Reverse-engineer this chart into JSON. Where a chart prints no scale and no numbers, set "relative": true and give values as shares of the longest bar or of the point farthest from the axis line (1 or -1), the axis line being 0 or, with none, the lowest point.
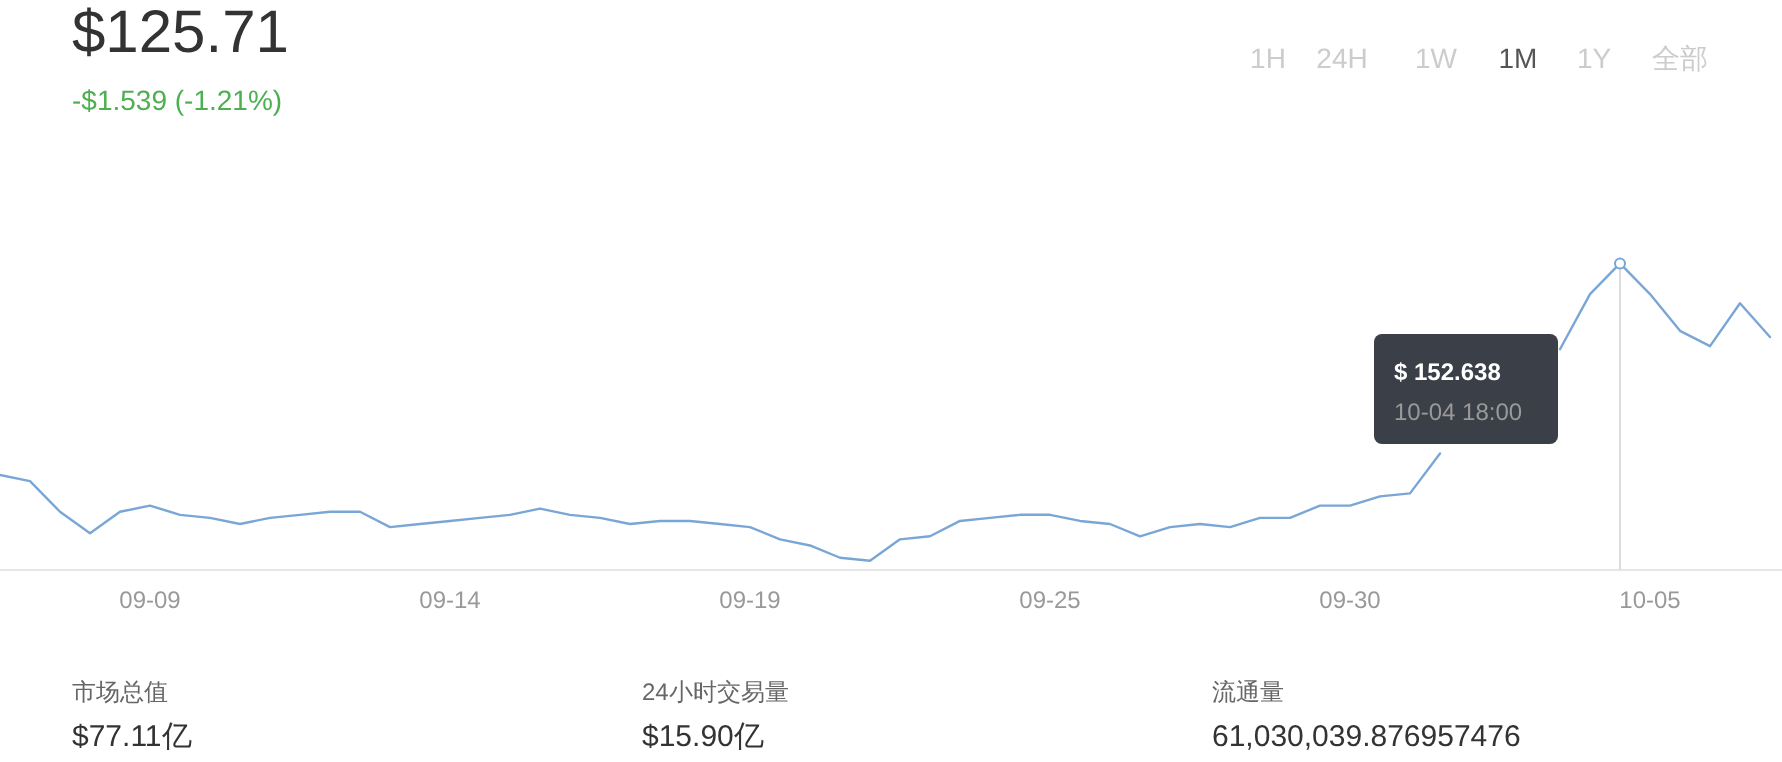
{
  "chart_data": {
    "type": "line",
    "title": "$125.71",
    "subtitle": "-$1.539 (-1.21%)",
    "relative": true,
    "categories": [
      null,
      null,
      null,
      null,
      null,
      "09-09",
      null,
      null,
      null,
      null,
      null,
      null,
      null,
      null,
      null,
      "09-14",
      null,
      null,
      null,
      null,
      null,
      null,
      null,
      null,
      null,
      "09-19",
      null,
      null,
      null,
      null,
      null,
      null,
      null,
      null,
      null,
      "09-25",
      null,
      null,
      null,
      null,
      null,
      null,
      null,
      null,
      null,
      "09-30",
      null,
      null,
      null,
      null,
      null,
      null,
      null,
      null,
      null,
      "10-05",
      null,
      null,
      null,
      null
    ],
    "series": [
      {
        "color": "#7aa6d6",
        "values": [
          0.31,
          0.29,
          0.19,
          0.12,
          0.19,
          0.21,
          0.18,
          0.17,
          0.15,
          0.17,
          0.18,
          0.19,
          0.19,
          0.14,
          0.15,
          0.16,
          0.17,
          0.18,
          0.2,
          0.18,
          0.17,
          0.15,
          0.16,
          0.16,
          0.15,
          0.14,
          0.1,
          0.08,
          0.04,
          0.03,
          0.1,
          0.11,
          0.16,
          0.17,
          0.18,
          0.18,
          0.16,
          0.15,
          0.11,
          0.14,
          0.15,
          0.14,
          0.17,
          0.17,
          0.21,
          0.21,
          0.24,
          0.25,
          0.38,
          null,
          null,
          null,
          0.72,
          0.9,
          1.0,
          0.9,
          0.78,
          0.73,
          0.87,
          0.76
        ]
      }
    ],
    "annotations": [
      "1H",
      "24H",
      "1W",
      "1M",
      "1Y",
      "全部",
      "市场总值",
      "$77.11亿",
      "24小时交易量",
      "$15.90亿",
      "流通量",
      "61,030,039.876957476",
      "$ 152.638",
      "10-04 18:00"
    ]
  }
}
